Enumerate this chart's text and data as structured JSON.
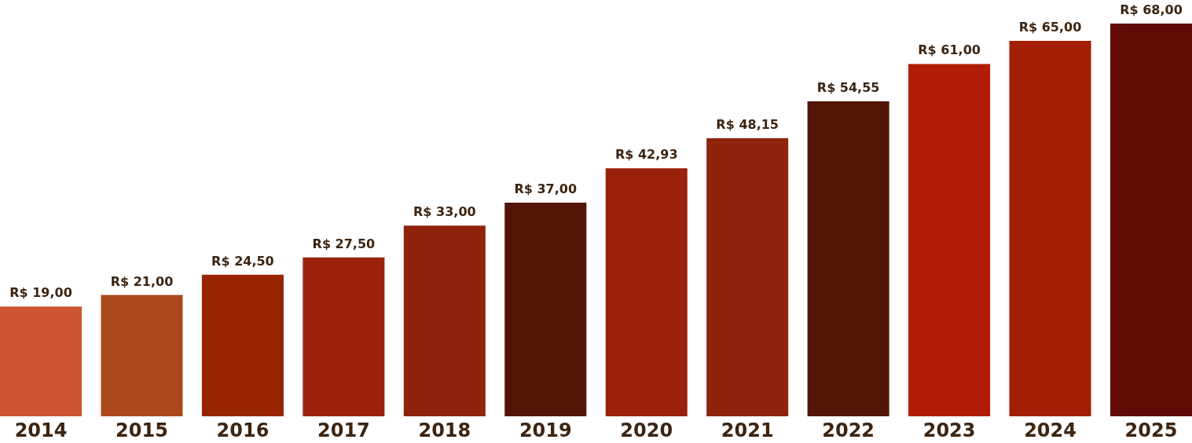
{
  "chart_data": {
    "type": "bar",
    "categories": [
      "2014",
      "2015",
      "2016",
      "2017",
      "2018",
      "2019",
      "2020",
      "2021",
      "2022",
      "2023",
      "2024",
      "2025"
    ],
    "values": [
      19.0,
      21.0,
      24.5,
      27.5,
      33.0,
      37.0,
      42.93,
      48.15,
      54.55,
      61.0,
      65.0,
      68.0
    ],
    "value_labels": [
      "R$ 19,00",
      "R$ 21,00",
      "R$ 24,50",
      "R$ 27,50",
      "R$ 33,00",
      "R$ 37,00",
      "R$ 42,93",
      "R$ 48,15",
      "R$ 54,55",
      "R$ 61,00",
      "R$ 65,00",
      "R$  68,00"
    ],
    "colors": [
      "#cb5530",
      "#ab4819",
      "#972600",
      "#9b210a",
      "#8f230b",
      "#531506",
      "#9a210b",
      "#8f230c",
      "#531506",
      "#b01c05",
      "#a41e05",
      "#600b05"
    ],
    "grid": false
  }
}
